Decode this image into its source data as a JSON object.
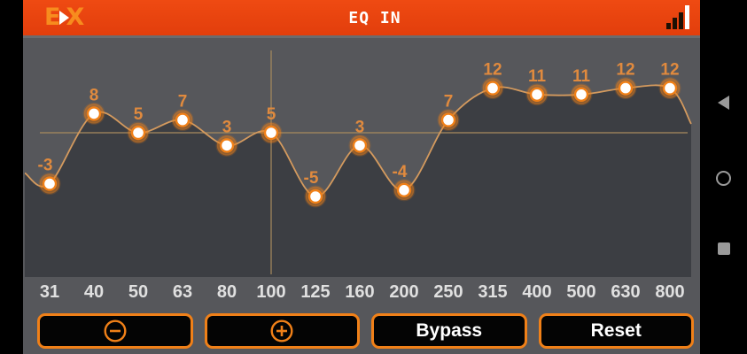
{
  "titlebar": {
    "title": "EQ IN",
    "logo": {
      "left": "E",
      "right": "X",
      "icon": "play-triangle"
    },
    "status_icon": "signal-bars"
  },
  "chart_data": {
    "type": "line",
    "title": "EQ IN",
    "categories": [
      "31",
      "40",
      "50",
      "63",
      "80",
      "100",
      "125",
      "160",
      "200",
      "250",
      "315",
      "400",
      "500",
      "630",
      "800"
    ],
    "values": [
      -3,
      8,
      5,
      7,
      3,
      5,
      -5,
      3,
      -4,
      7,
      12,
      11,
      11,
      12,
      12
    ],
    "xlabel": "",
    "ylabel": "",
    "ylim": [
      -18,
      20
    ],
    "selected_index": 5,
    "selected_band": "100",
    "crosshair_value": 5,
    "grid": "crosshair-on-selected-band",
    "legend": "none",
    "point_style": "white-dot-orange-glow",
    "fill": "below-curve"
  },
  "controls": {
    "decrease_icon": "minus-circle",
    "increase_icon": "plus-circle",
    "bypass_label": "Bypass",
    "reset_label": "Reset"
  },
  "navbar": {
    "icons": [
      "back",
      "home",
      "recents"
    ]
  },
  "colors": {
    "accent": "#f08018",
    "titlebar_bg": "#e8430f",
    "logo_orange": "#f78c1e",
    "chart_bg": "#56575b",
    "chart_fill": "#3c3e43",
    "curve": "#d49a5e",
    "crosshair": "#a88a5e",
    "value_label": "#e08a3e",
    "freq_label": "#e0e0e0",
    "dot_core": "#ffffff",
    "button_bg": "#040404",
    "button_text": "#ffffff",
    "nav_icon": "#9a9a9a"
  }
}
